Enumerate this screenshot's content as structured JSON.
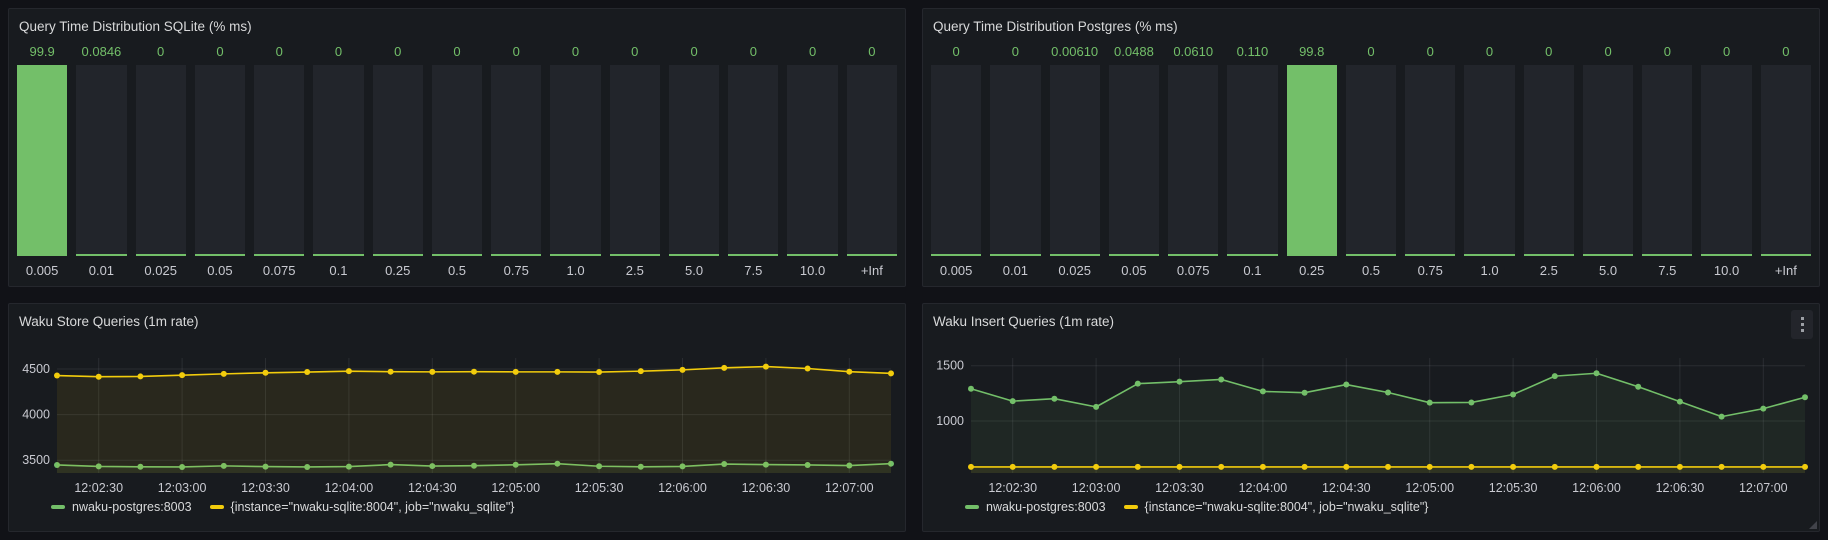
{
  "colors": {
    "page_bg": "#111217",
    "panel_bg": "#181B1F",
    "panel_border": "#25272D",
    "bar_track": "#22252B",
    "green": "#73BF69",
    "yellow": "#F2CC0C",
    "axis_text": "#C9CAD1",
    "title_text": "#D8D9DA",
    "grid_line": "rgba(204,204,220,0.10)"
  },
  "chart_data": [
    {
      "type": "bar",
      "title": "Query Time Distribution SQLite (% ms)",
      "xlabel": "",
      "ylabel": "",
      "ylim": [
        0,
        100
      ],
      "bar_color": "#73BF69",
      "categories": [
        "0.005",
        "0.01",
        "0.025",
        "0.05",
        "0.075",
        "0.1",
        "0.25",
        "0.5",
        "0.75",
        "1.0",
        "2.5",
        "5.0",
        "7.5",
        "10.0",
        "+Inf"
      ],
      "values": [
        99.9,
        0.0846,
        0,
        0,
        0,
        0,
        0,
        0,
        0,
        0,
        0,
        0,
        0,
        0,
        0
      ],
      "value_labels": [
        "99.9",
        "0.0846",
        "0",
        "0",
        "0",
        "0",
        "0",
        "0",
        "0",
        "0",
        "0",
        "0",
        "0",
        "0",
        "0"
      ]
    },
    {
      "type": "bar",
      "title": "Query Time Distribution Postgres (% ms)",
      "xlabel": "",
      "ylabel": "",
      "ylim": [
        0,
        100
      ],
      "bar_color": "#73BF69",
      "categories": [
        "0.005",
        "0.01",
        "0.025",
        "0.05",
        "0.075",
        "0.1",
        "0.25",
        "0.5",
        "0.75",
        "1.0",
        "2.5",
        "5.0",
        "7.5",
        "10.0",
        "+Inf"
      ],
      "values": [
        0,
        0,
        0.0061,
        0.0488,
        0.061,
        0.11,
        99.8,
        0,
        0,
        0,
        0,
        0,
        0,
        0,
        0
      ],
      "value_labels": [
        "0",
        "0",
        "0.00610",
        "0.0488",
        "0.0610",
        "0.110",
        "99.8",
        "0",
        "0",
        "0",
        "0",
        "0",
        "0",
        "0",
        "0"
      ]
    },
    {
      "type": "line",
      "title": "Waku Store Queries (1m rate)",
      "x_tick_labels": [
        "12:02:30",
        "12:03:00",
        "12:03:30",
        "12:04:00",
        "12:04:30",
        "12:05:00",
        "12:05:30",
        "12:06:00",
        "12:06:30",
        "12:07:00"
      ],
      "x_tick_indices": [
        1,
        3,
        5,
        7,
        9,
        11,
        13,
        15,
        17,
        19
      ],
      "yticks": [
        3500,
        4000,
        4500
      ],
      "ylim": [
        3360,
        4620
      ],
      "grid": true,
      "legend_position": "bottom",
      "series": [
        {
          "name": "nwaku-postgres:8003",
          "color": "#73BF69",
          "values": [
            3448,
            3432,
            3428,
            3426,
            3438,
            3430,
            3426,
            3430,
            3452,
            3436,
            3440,
            3450,
            3462,
            3434,
            3428,
            3432,
            3458,
            3452,
            3448,
            3442,
            3462
          ]
        },
        {
          "name": "{instance=\"nwaku-sqlite:8004\", job=\"nwaku_sqlite\"}",
          "color": "#F2CC0C",
          "values": [
            4428,
            4415,
            4418,
            4432,
            4446,
            4458,
            4466,
            4476,
            4470,
            4468,
            4470,
            4468,
            4468,
            4466,
            4476,
            4490,
            4512,
            4526,
            4505,
            4470,
            4452
          ]
        }
      ]
    },
    {
      "type": "line",
      "title": "Waku Insert Queries (1m rate)",
      "x_tick_labels": [
        "12:02:30",
        "12:03:00",
        "12:03:30",
        "12:04:00",
        "12:04:30",
        "12:05:00",
        "12:05:30",
        "12:06:00",
        "12:06:30",
        "12:07:00"
      ],
      "x_tick_indices": [
        1,
        3,
        5,
        7,
        9,
        11,
        13,
        15,
        17,
        19
      ],
      "yticks": [
        1000,
        1500
      ],
      "ylim": [
        530,
        1570
      ],
      "grid": true,
      "legend_position": "bottom",
      "has_menu_icon": true,
      "has_resize_handle": true,
      "series": [
        {
          "name": "nwaku-postgres:8003",
          "color": "#73BF69",
          "values": [
            1292,
            1180,
            1202,
            1128,
            1338,
            1356,
            1376,
            1268,
            1256,
            1330,
            1258,
            1166,
            1168,
            1240,
            1406,
            1432,
            1310,
            1176,
            1040,
            1112,
            1215
          ]
        },
        {
          "name": "{instance=\"nwaku-sqlite:8004\", job=\"nwaku_sqlite\"}",
          "color": "#F2CC0C",
          "values": [
            585,
            585,
            585,
            585,
            585,
            585,
            585,
            585,
            585,
            585,
            585,
            585,
            585,
            585,
            585,
            585,
            585,
            585,
            585,
            585,
            585
          ]
        }
      ]
    }
  ]
}
